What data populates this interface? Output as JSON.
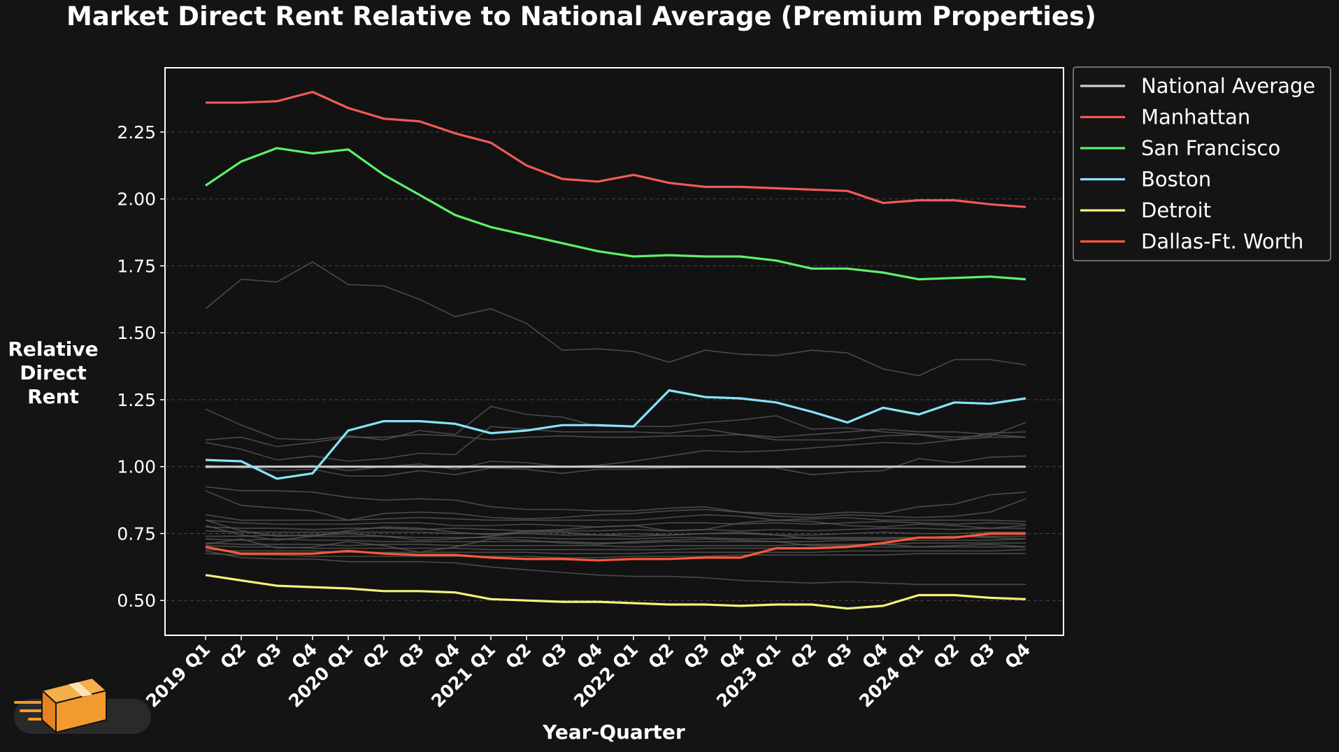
{
  "chart_data": {
    "type": "line",
    "title": "Market Direct Rent Relative to National Average (Premium Properties)",
    "xlabel": "Year-Quarter",
    "ylabel": "Relative\nDirect\nRent",
    "ylim": [
      0.37,
      2.49
    ],
    "yticks": [
      0.5,
      0.75,
      1.0,
      1.25,
      1.5,
      1.75,
      2.0,
      2.25
    ],
    "ytick_labels": [
      "0.50",
      "0.75",
      "1.00",
      "1.25",
      "1.50",
      "1.75",
      "2.00",
      "2.25"
    ],
    "grid": "horizontal dashed",
    "legend_placement": "outside-top-right",
    "categories": [
      "2019 Q1",
      "Q2",
      "Q3",
      "Q4",
      "2020 Q1",
      "Q2",
      "Q3",
      "Q4",
      "2021 Q1",
      "Q2",
      "Q3",
      "Q4",
      "2022 Q1",
      "Q2",
      "Q3",
      "Q4",
      "2023 Q1",
      "Q2",
      "Q3",
      "Q4",
      "2024 Q1",
      "Q2",
      "Q3",
      "Q4"
    ],
    "series": [
      {
        "name": "National Average",
        "color": "#cfcfcf",
        "values": [
          1,
          1,
          1,
          1,
          1,
          1,
          1,
          1,
          1,
          1,
          1,
          1,
          1,
          1,
          1,
          1,
          1,
          1,
          1,
          1,
          1,
          1,
          1,
          1
        ]
      },
      {
        "name": "Manhattan",
        "color": "#f05a5a",
        "values": [
          2.36,
          2.36,
          2.365,
          2.4,
          2.34,
          2.3,
          2.29,
          2.245,
          2.21,
          2.125,
          2.075,
          2.065,
          2.09,
          2.06,
          2.045,
          2.045,
          2.04,
          2.035,
          2.03,
          1.985,
          1.995,
          1.995,
          1.98,
          1.97
        ]
      },
      {
        "name": "San Francisco",
        "color": "#5ff06a",
        "values": [
          2.05,
          2.14,
          2.19,
          2.17,
          2.185,
          2.09,
          2.015,
          1.94,
          1.895,
          1.865,
          1.835,
          1.805,
          1.785,
          1.79,
          1.785,
          1.785,
          1.77,
          1.74,
          1.74,
          1.725,
          1.7,
          1.705,
          1.71,
          1.7
        ]
      },
      {
        "name": "Boston",
        "color": "#86e4f8",
        "values": [
          1.025,
          1.02,
          0.955,
          0.975,
          1.135,
          1.17,
          1.17,
          1.16,
          1.125,
          1.135,
          1.155,
          1.155,
          1.15,
          1.285,
          1.26,
          1.255,
          1.24,
          1.205,
          1.165,
          1.22,
          1.195,
          1.24,
          1.235,
          1.255
        ]
      },
      {
        "name": "Detroit",
        "color": "#f2f27a",
        "values": [
          0.595,
          0.575,
          0.555,
          0.55,
          0.545,
          0.535,
          0.535,
          0.53,
          0.505,
          0.5,
          0.495,
          0.495,
          0.49,
          0.485,
          0.485,
          0.48,
          0.485,
          0.485,
          0.47,
          0.48,
          0.52,
          0.52,
          0.51,
          0.505
        ]
      },
      {
        "name": "Dallas-Ft. Worth",
        "color": "#ff5a3a",
        "values": [
          0.7,
          0.675,
          0.675,
          0.675,
          0.685,
          0.675,
          0.67,
          0.67,
          0.66,
          0.655,
          0.655,
          0.65,
          0.655,
          0.655,
          0.66,
          0.66,
          0.695,
          0.695,
          0.7,
          0.715,
          0.735,
          0.735,
          0.75,
          0.75
        ]
      }
    ],
    "background_series": {
      "color": "#5c5c5c",
      "values": [
        [
          1.59,
          1.7,
          1.69,
          1.765,
          1.68,
          1.675,
          1.625,
          1.56,
          1.59,
          1.535,
          1.435,
          1.44,
          1.43,
          1.39,
          1.435,
          1.42,
          1.415,
          1.435,
          1.425,
          1.365,
          1.34,
          1.4,
          1.4,
          1.38
        ],
        [
          1.215,
          1.155,
          1.105,
          1.1,
          1.115,
          1.1,
          1.135,
          1.12,
          1.225,
          1.195,
          1.185,
          1.15,
          1.15,
          1.15,
          1.165,
          1.175,
          1.19,
          1.14,
          1.145,
          1.13,
          1.12,
          1.11,
          1.115,
          1.165
        ],
        [
          1.09,
          1.065,
          1.025,
          1.04,
          1.02,
          1.03,
          1.05,
          1.045,
          1.15,
          1.14,
          1.13,
          1.13,
          1.13,
          1.125,
          1.14,
          1.12,
          1.1,
          1.1,
          1.1,
          1.115,
          1.12,
          1.1,
          1.11,
          1.11
        ],
        [
          1.1,
          1.11,
          1.075,
          1.09,
          1.11,
          1.11,
          1.12,
          1.115,
          1.1,
          1.11,
          1.115,
          1.11,
          1.11,
          1.115,
          1.115,
          1.12,
          1.11,
          1.12,
          1.13,
          1.14,
          1.13,
          1.13,
          1.12,
          1.11
        ],
        [
          1.005,
          0.995,
          1.0,
          1.005,
          0.985,
          1.0,
          1.01,
          0.99,
          1.02,
          1.015,
          1.0,
          1.005,
          1.02,
          1.04,
          1.06,
          1.055,
          1.06,
          1.07,
          1.08,
          1.09,
          1.085,
          1.1,
          1.125,
          1.13
        ],
        [
          0.995,
          1.0,
          0.985,
          0.99,
          0.965,
          0.965,
          0.985,
          0.97,
          0.995,
          0.99,
          0.975,
          0.99,
          0.99,
          0.995,
          1.0,
          1.0,
          0.995,
          0.97,
          0.98,
          0.985,
          1.03,
          1.015,
          1.035,
          1.04
        ],
        [
          0.925,
          0.91,
          0.91,
          0.905,
          0.885,
          0.875,
          0.88,
          0.875,
          0.85,
          0.84,
          0.84,
          0.835,
          0.835,
          0.845,
          0.85,
          0.83,
          0.825,
          0.82,
          0.83,
          0.825,
          0.85,
          0.86,
          0.895,
          0.905
        ],
        [
          0.91,
          0.855,
          0.845,
          0.835,
          0.8,
          0.825,
          0.83,
          0.825,
          0.81,
          0.805,
          0.81,
          0.82,
          0.825,
          0.835,
          0.84,
          0.83,
          0.815,
          0.81,
          0.82,
          0.815,
          0.81,
          0.815,
          0.83,
          0.88
        ],
        [
          0.82,
          0.8,
          0.8,
          0.8,
          0.8,
          0.805,
          0.81,
          0.805,
          0.8,
          0.8,
          0.8,
          0.8,
          0.8,
          0.81,
          0.82,
          0.815,
          0.8,
          0.805,
          0.81,
          0.8,
          0.8,
          0.8,
          0.8,
          0.795
        ],
        [
          0.8,
          0.79,
          0.785,
          0.785,
          0.785,
          0.79,
          0.79,
          0.78,
          0.78,
          0.785,
          0.78,
          0.775,
          0.78,
          0.79,
          0.79,
          0.785,
          0.79,
          0.785,
          0.79,
          0.795,
          0.79,
          0.785,
          0.79,
          0.785
        ],
        [
          0.775,
          0.77,
          0.77,
          0.765,
          0.77,
          0.77,
          0.765,
          0.77,
          0.765,
          0.76,
          0.76,
          0.76,
          0.765,
          0.76,
          0.765,
          0.76,
          0.765,
          0.76,
          0.765,
          0.77,
          0.77,
          0.765,
          0.77,
          0.77
        ],
        [
          0.76,
          0.755,
          0.755,
          0.755,
          0.755,
          0.755,
          0.755,
          0.75,
          0.75,
          0.75,
          0.745,
          0.745,
          0.75,
          0.745,
          0.75,
          0.75,
          0.745,
          0.745,
          0.75,
          0.755,
          0.75,
          0.75,
          0.755,
          0.755
        ],
        [
          0.74,
          0.74,
          0.745,
          0.74,
          0.74,
          0.74,
          0.735,
          0.735,
          0.735,
          0.735,
          0.73,
          0.73,
          0.73,
          0.735,
          0.735,
          0.73,
          0.73,
          0.735,
          0.735,
          0.735,
          0.735,
          0.74,
          0.74,
          0.74
        ],
        [
          0.73,
          0.725,
          0.73,
          0.725,
          0.725,
          0.72,
          0.72,
          0.72,
          0.72,
          0.72,
          0.72,
          0.715,
          0.715,
          0.72,
          0.72,
          0.72,
          0.72,
          0.72,
          0.725,
          0.725,
          0.725,
          0.725,
          0.725,
          0.73
        ],
        [
          0.715,
          0.71,
          0.71,
          0.71,
          0.705,
          0.71,
          0.71,
          0.705,
          0.705,
          0.705,
          0.705,
          0.705,
          0.7,
          0.705,
          0.705,
          0.705,
          0.705,
          0.71,
          0.71,
          0.71,
          0.715,
          0.715,
          0.715,
          0.715
        ],
        [
          0.705,
          0.7,
          0.7,
          0.695,
          0.695,
          0.695,
          0.695,
          0.695,
          0.69,
          0.69,
          0.69,
          0.69,
          0.69,
          0.69,
          0.695,
          0.695,
          0.695,
          0.695,
          0.7,
          0.7,
          0.7,
          0.7,
          0.7,
          0.7
        ],
        [
          0.69,
          0.685,
          0.685,
          0.685,
          0.68,
          0.68,
          0.68,
          0.68,
          0.68,
          0.68,
          0.675,
          0.675,
          0.675,
          0.68,
          0.68,
          0.68,
          0.68,
          0.68,
          0.685,
          0.685,
          0.685,
          0.685,
          0.685,
          0.69
        ],
        [
          0.675,
          0.67,
          0.67,
          0.665,
          0.665,
          0.665,
          0.665,
          0.665,
          0.665,
          0.665,
          0.66,
          0.66,
          0.665,
          0.665,
          0.665,
          0.67,
          0.67,
          0.67,
          0.67,
          0.67,
          0.675,
          0.675,
          0.675,
          0.675
        ],
        [
          0.685,
          0.66,
          0.655,
          0.655,
          0.645,
          0.645,
          0.645,
          0.64,
          0.625,
          0.615,
          0.605,
          0.595,
          0.59,
          0.59,
          0.585,
          0.575,
          0.57,
          0.565,
          0.57,
          0.565,
          0.56,
          0.56,
          0.56,
          0.56
        ],
        [
          0.8,
          0.76,
          0.74,
          0.745,
          0.75,
          0.74,
          0.725,
          0.73,
          0.74,
          0.755,
          0.755,
          0.745,
          0.74,
          0.745,
          0.75,
          0.755,
          0.745,
          0.73,
          0.73,
          0.73,
          0.735,
          0.74,
          0.735,
          0.73
        ],
        [
          0.71,
          0.73,
          0.695,
          0.7,
          0.72,
          0.705,
          0.68,
          0.7,
          0.73,
          0.725,
          0.715,
          0.71,
          0.72,
          0.725,
          0.73,
          0.725,
          0.72,
          0.705,
          0.705,
          0.71,
          0.7,
          0.705,
          0.71,
          0.7
        ],
        [
          0.78,
          0.745,
          0.725,
          0.74,
          0.76,
          0.775,
          0.77,
          0.755,
          0.745,
          0.76,
          0.765,
          0.775,
          0.78,
          0.76,
          0.765,
          0.79,
          0.8,
          0.795,
          0.78,
          0.775,
          0.785,
          0.78,
          0.77,
          0.78
        ]
      ]
    }
  }
}
